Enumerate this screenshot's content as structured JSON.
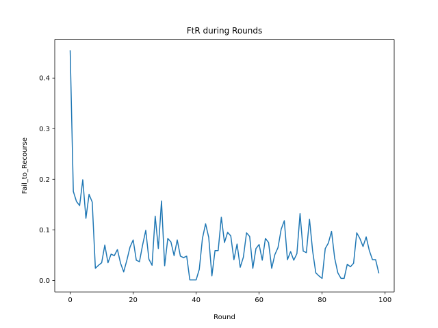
{
  "chart_data": {
    "type": "line",
    "title": "FtR during Rounds",
    "xlabel": "Round",
    "ylabel": "Fail_to_Recourse",
    "xlim": [
      -4.9,
      102.9
    ],
    "ylim": [
      -0.0227,
      0.4765
    ],
    "xticks": [
      0,
      20,
      40,
      60,
      80,
      100
    ],
    "yticks": [
      0.0,
      0.1,
      0.2,
      0.3,
      0.4
    ],
    "xtick_labels": [
      "0",
      "20",
      "40",
      "60",
      "80",
      "100"
    ],
    "ytick_labels": [
      "0.0",
      "0.1",
      "0.2",
      "0.3",
      "0.4"
    ],
    "grid": false,
    "series": [
      {
        "color": "#1f77b4",
        "x": [
          0,
          1,
          2,
          3,
          4,
          5,
          6,
          7,
          8,
          9,
          10,
          11,
          12,
          13,
          14,
          15,
          16,
          17,
          18,
          19,
          20,
          21,
          22,
          23,
          24,
          25,
          26,
          27,
          28,
          29,
          30,
          31,
          32,
          33,
          34,
          35,
          36,
          37,
          38,
          39,
          40,
          41,
          42,
          43,
          44,
          45,
          46,
          47,
          48,
          49,
          50,
          51,
          52,
          53,
          54,
          55,
          56,
          57,
          58,
          59,
          60,
          61,
          62,
          63,
          64,
          65,
          66,
          67,
          68,
          69,
          70,
          71,
          72,
          73,
          74,
          75,
          76,
          77,
          78,
          79,
          80,
          81,
          82,
          83,
          84,
          85,
          86,
          87,
          88,
          89,
          90,
          91,
          92,
          93,
          94,
          95,
          96,
          97,
          98
        ],
        "y": [
          0.454,
          0.176,
          0.156,
          0.148,
          0.199,
          0.123,
          0.17,
          0.155,
          0.024,
          0.03,
          0.035,
          0.07,
          0.035,
          0.052,
          0.049,
          0.061,
          0.034,
          0.017,
          0.04,
          0.066,
          0.08,
          0.04,
          0.037,
          0.07,
          0.099,
          0.042,
          0.03,
          0.127,
          0.063,
          0.157,
          0.029,
          0.083,
          0.076,
          0.049,
          0.08,
          0.048,
          0.045,
          0.048,
          0.001,
          0.001,
          0.001,
          0.022,
          0.083,
          0.112,
          0.085,
          0.009,
          0.059,
          0.059,
          0.125,
          0.075,
          0.095,
          0.088,
          0.041,
          0.072,
          0.026,
          0.046,
          0.094,
          0.087,
          0.024,
          0.063,
          0.071,
          0.04,
          0.083,
          0.075,
          0.024,
          0.051,
          0.065,
          0.101,
          0.118,
          0.041,
          0.057,
          0.04,
          0.053,
          0.132,
          0.058,
          0.055,
          0.121,
          0.058,
          0.015,
          0.009,
          0.004,
          0.063,
          0.074,
          0.097,
          0.044,
          0.015,
          0.004,
          0.004,
          0.032,
          0.027,
          0.034,
          0.094,
          0.083,
          0.067,
          0.086,
          0.059,
          0.041,
          0.041,
          0.015
        ]
      }
    ]
  }
}
